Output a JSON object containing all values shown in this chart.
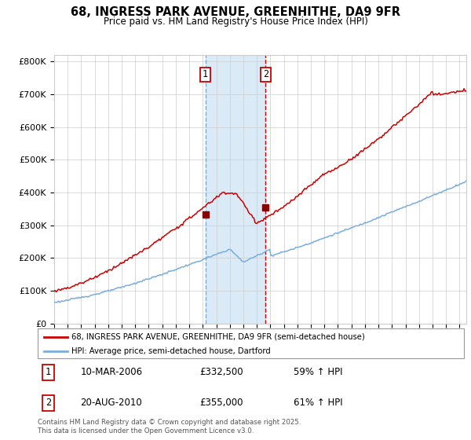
{
  "title_line1": "68, INGRESS PARK AVENUE, GREENHITHE, DA9 9FR",
  "title_line2": "Price paid vs. HM Land Registry's House Price Index (HPI)",
  "ylim": [
    0,
    820000
  ],
  "yticks": [
    0,
    100000,
    200000,
    300000,
    400000,
    500000,
    600000,
    700000,
    800000
  ],
  "ytick_labels": [
    "£0",
    "£100K",
    "£200K",
    "£300K",
    "£400K",
    "£500K",
    "£600K",
    "£700K",
    "£800K"
  ],
  "red_line_color": "#cc0000",
  "blue_line_color": "#7aaddb",
  "marker_color": "#880000",
  "shade_color": "#daeaf7",
  "vline1_x": 2006.19,
  "vline2_x": 2010.64,
  "marker1_x": 2006.19,
  "marker1_y": 332500,
  "marker2_x": 2010.64,
  "marker2_y": 355000,
  "label1": "1",
  "label2": "2",
  "legend_red": "68, INGRESS PARK AVENUE, GREENHITHE, DA9 9FR (semi-detached house)",
  "legend_blue": "HPI: Average price, semi-detached house, Dartford",
  "table_rows": [
    {
      "num": "1",
      "date": "10-MAR-2006",
      "price": "£332,500",
      "hpi": "59% ↑ HPI"
    },
    {
      "num": "2",
      "date": "20-AUG-2010",
      "price": "£355,000",
      "hpi": "61% ↑ HPI"
    }
  ],
  "footnote": "Contains HM Land Registry data © Crown copyright and database right 2025.\nThis data is licensed under the Open Government Licence v3.0.",
  "background_color": "#ffffff",
  "grid_color": "#cccccc",
  "xmin": 1995,
  "xmax": 2025.5
}
